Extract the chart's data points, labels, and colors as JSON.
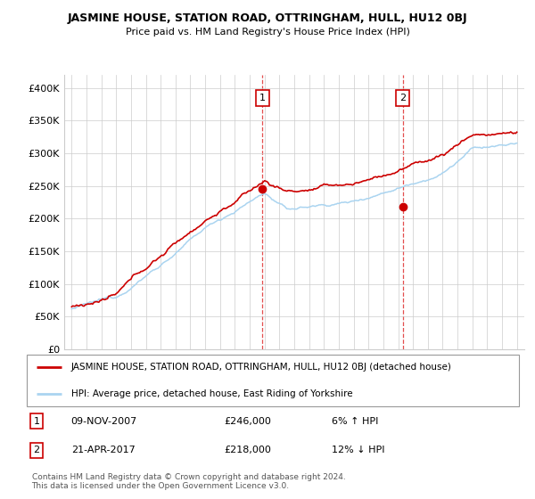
{
  "title": "JASMINE HOUSE, STATION ROAD, OTTRINGHAM, HULL, HU12 0BJ",
  "subtitle": "Price paid vs. HM Land Registry's House Price Index (HPI)",
  "ylim": [
    0,
    420000
  ],
  "yticks": [
    0,
    50000,
    100000,
    150000,
    200000,
    250000,
    300000,
    350000,
    400000
  ],
  "ytick_labels": [
    "£0",
    "£50K",
    "£100K",
    "£150K",
    "£200K",
    "£250K",
    "£300K",
    "£350K",
    "£400K"
  ],
  "x_start_year": 1995,
  "x_end_year": 2025,
  "background_color": "#ffffff",
  "grid_color": "#cccccc",
  "hpi_color": "#aad4f0",
  "price_color": "#cc0000",
  "marker1_date": 2007.86,
  "marker1_value": 246000,
  "marker2_date": 2017.31,
  "marker2_value": 218000,
  "legend_line1": "JASMINE HOUSE, STATION ROAD, OTTRINGHAM, HULL, HU12 0BJ (detached house)",
  "legend_line2": "HPI: Average price, detached house, East Riding of Yorkshire",
  "footer": "Contains HM Land Registry data © Crown copyright and database right 2024.\nThis data is licensed under the Open Government Licence v3.0."
}
